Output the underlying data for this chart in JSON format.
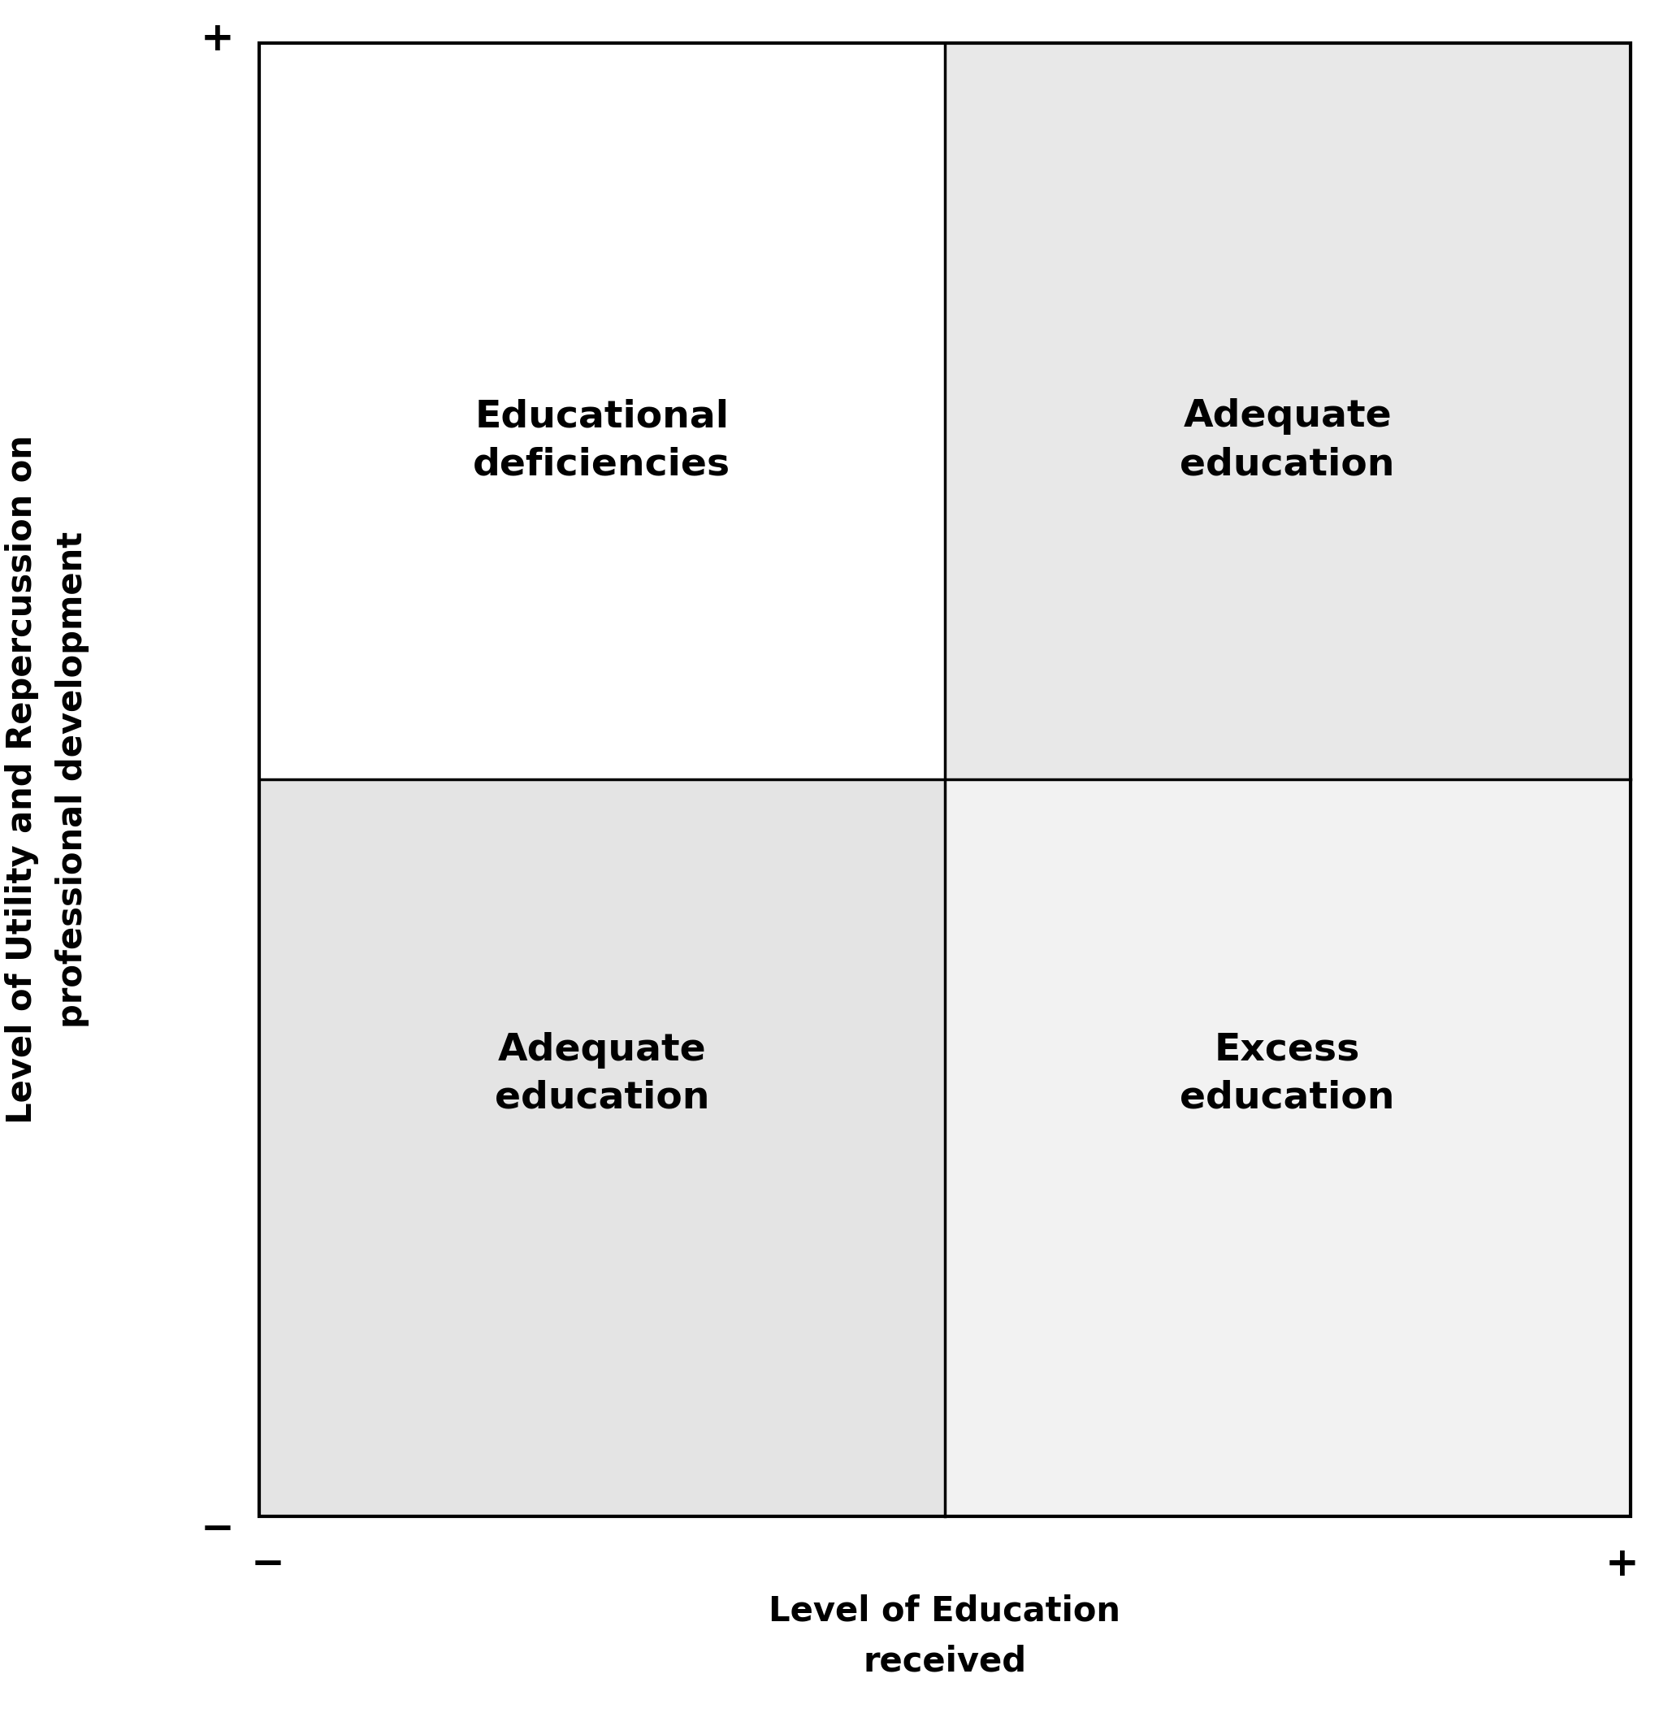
{
  "xlabel": "Level of Education\nreceived",
  "ylabel": "Level of Utility and Repercussion on\nprofessional development",
  "quadrant_labels": [
    {
      "text": "Educational\ndeficiencies"
    },
    {
      "text": "Adequate\neducation"
    },
    {
      "text": "Adequate\neducation"
    },
    {
      "text": "Excess\neducation"
    }
  ],
  "quadrant_colors": [
    "#ffffff",
    "#e8e8e8",
    "#e4e4e4",
    "#f2f2f2"
  ],
  "axis_label_fontsize": 30,
  "quadrant_fontsize": 34,
  "plus_minus_fontsize": 36,
  "bg_color": "#ffffff",
  "plus_minus_color": "#000000",
  "border_color": "#000000",
  "border_linewidth": 3.0,
  "divider_linewidth": 2.5
}
